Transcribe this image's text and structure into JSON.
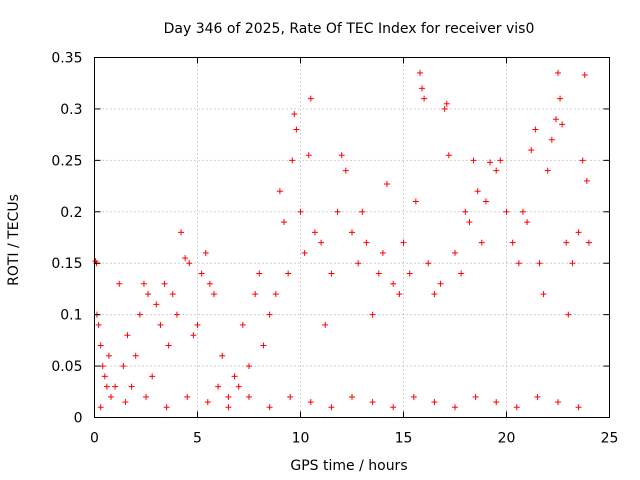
{
  "colors": {
    "series": "#ff0000",
    "axis": "#000000",
    "grid": "#a0a0a0",
    "background": "#ffffff"
  },
  "chart_data": {
    "type": "scatter",
    "title": "Day 346 of 2025, Rate Of TEC Index for receiver vis0",
    "xlabel": "GPS time / hours",
    "ylabel": "ROTI / TECUs",
    "xlim": [
      0,
      25
    ],
    "ylim": [
      0,
      0.35
    ],
    "xticks": [
      0,
      5,
      10,
      15,
      20,
      25
    ],
    "xtick_labels": [
      "0",
      "5",
      "10",
      "15",
      "20",
      "25"
    ],
    "yticks": [
      0,
      0.05,
      0.1,
      0.15,
      0.2,
      0.25,
      0.3,
      0.35
    ],
    "ytick_labels": [
      "0",
      "0.05",
      "0.1",
      "0.15",
      "0.2",
      "0.25",
      "0.3",
      "0.35"
    ],
    "grid": true,
    "marker": "+",
    "series": [
      {
        "name": "vis0",
        "points": [
          [
            0.05,
            0.152
          ],
          [
            0.1,
            0.15
          ],
          [
            0.12,
            0.1
          ],
          [
            0.2,
            0.09
          ],
          [
            0.3,
            0.07
          ],
          [
            0.4,
            0.05
          ],
          [
            0.5,
            0.04
          ],
          [
            0.6,
            0.03
          ],
          [
            0.7,
            0.06
          ],
          [
            0.8,
            0.02
          ],
          [
            1.0,
            0.03
          ],
          [
            1.2,
            0.13
          ],
          [
            1.4,
            0.05
          ],
          [
            1.6,
            0.08
          ],
          [
            1.8,
            0.03
          ],
          [
            2.0,
            0.06
          ],
          [
            2.2,
            0.1
          ],
          [
            2.4,
            0.13
          ],
          [
            2.6,
            0.12
          ],
          [
            2.8,
            0.04
          ],
          [
            3.0,
            0.11
          ],
          [
            3.2,
            0.09
          ],
          [
            3.4,
            0.13
          ],
          [
            3.6,
            0.07
          ],
          [
            3.8,
            0.12
          ],
          [
            4.0,
            0.1
          ],
          [
            4.2,
            0.18
          ],
          [
            4.4,
            0.155
          ],
          [
            4.6,
            0.15
          ],
          [
            4.8,
            0.08
          ],
          [
            5.0,
            0.09
          ],
          [
            5.2,
            0.14
          ],
          [
            5.4,
            0.16
          ],
          [
            5.6,
            0.13
          ],
          [
            5.8,
            0.12
          ],
          [
            6.0,
            0.03
          ],
          [
            6.2,
            0.06
          ],
          [
            6.5,
            0.02
          ],
          [
            6.8,
            0.04
          ],
          [
            7.0,
            0.03
          ],
          [
            7.2,
            0.09
          ],
          [
            7.5,
            0.05
          ],
          [
            7.8,
            0.12
          ],
          [
            8.0,
            0.14
          ],
          [
            8.2,
            0.07
          ],
          [
            8.5,
            0.1
          ],
          [
            8.8,
            0.12
          ],
          [
            9.0,
            0.22
          ],
          [
            9.2,
            0.19
          ],
          [
            9.4,
            0.14
          ],
          [
            9.6,
            0.25
          ],
          [
            9.7,
            0.295
          ],
          [
            9.8,
            0.28
          ],
          [
            10.0,
            0.2
          ],
          [
            10.2,
            0.16
          ],
          [
            10.4,
            0.255
          ],
          [
            10.5,
            0.31
          ],
          [
            10.7,
            0.18
          ],
          [
            11.0,
            0.17
          ],
          [
            11.2,
            0.09
          ],
          [
            11.5,
            0.14
          ],
          [
            11.8,
            0.2
          ],
          [
            12.0,
            0.255
          ],
          [
            12.2,
            0.24
          ],
          [
            12.5,
            0.18
          ],
          [
            12.8,
            0.15
          ],
          [
            13.0,
            0.2
          ],
          [
            13.2,
            0.17
          ],
          [
            13.5,
            0.1
          ],
          [
            13.8,
            0.14
          ],
          [
            14.0,
            0.16
          ],
          [
            14.2,
            0.227
          ],
          [
            14.5,
            0.13
          ],
          [
            14.8,
            0.12
          ],
          [
            15.0,
            0.17
          ],
          [
            15.3,
            0.14
          ],
          [
            15.6,
            0.21
          ],
          [
            15.8,
            0.335
          ],
          [
            15.9,
            0.32
          ],
          [
            16.0,
            0.31
          ],
          [
            16.2,
            0.15
          ],
          [
            16.5,
            0.12
          ],
          [
            16.8,
            0.13
          ],
          [
            17.0,
            0.3
          ],
          [
            17.1,
            0.305
          ],
          [
            17.2,
            0.255
          ],
          [
            17.5,
            0.16
          ],
          [
            17.8,
            0.14
          ],
          [
            18.0,
            0.2
          ],
          [
            18.2,
            0.19
          ],
          [
            18.4,
            0.25
          ],
          [
            18.6,
            0.22
          ],
          [
            18.8,
            0.17
          ],
          [
            19.0,
            0.21
          ],
          [
            19.2,
            0.248
          ],
          [
            19.5,
            0.24
          ],
          [
            19.7,
            0.25
          ],
          [
            20.0,
            0.2
          ],
          [
            20.3,
            0.17
          ],
          [
            20.6,
            0.15
          ],
          [
            20.8,
            0.2
          ],
          [
            21.0,
            0.19
          ],
          [
            21.2,
            0.26
          ],
          [
            21.4,
            0.28
          ],
          [
            21.6,
            0.15
          ],
          [
            21.8,
            0.12
          ],
          [
            22.0,
            0.24
          ],
          [
            22.2,
            0.27
          ],
          [
            22.4,
            0.29
          ],
          [
            22.5,
            0.335
          ],
          [
            22.6,
            0.31
          ],
          [
            22.7,
            0.285
          ],
          [
            22.9,
            0.17
          ],
          [
            23.0,
            0.1
          ],
          [
            23.2,
            0.15
          ],
          [
            23.5,
            0.18
          ],
          [
            23.7,
            0.25
          ],
          [
            23.8,
            0.333
          ],
          [
            23.9,
            0.23
          ],
          [
            24.0,
            0.17
          ],
          [
            0.3,
            0.01
          ],
          [
            1.5,
            0.015
          ],
          [
            2.5,
            0.02
          ],
          [
            3.5,
            0.01
          ],
          [
            4.5,
            0.02
          ],
          [
            5.5,
            0.015
          ],
          [
            6.5,
            0.01
          ],
          [
            7.5,
            0.02
          ],
          [
            8.5,
            0.01
          ],
          [
            9.5,
            0.02
          ],
          [
            10.5,
            0.015
          ],
          [
            11.5,
            0.01
          ],
          [
            12.5,
            0.02
          ],
          [
            13.5,
            0.015
          ],
          [
            14.5,
            0.01
          ],
          [
            15.5,
            0.02
          ],
          [
            16.5,
            0.015
          ],
          [
            17.5,
            0.01
          ],
          [
            18.5,
            0.02
          ],
          [
            19.5,
            0.015
          ],
          [
            20.5,
            0.01
          ],
          [
            21.5,
            0.02
          ],
          [
            22.5,
            0.015
          ],
          [
            23.5,
            0.01
          ]
        ]
      }
    ]
  }
}
